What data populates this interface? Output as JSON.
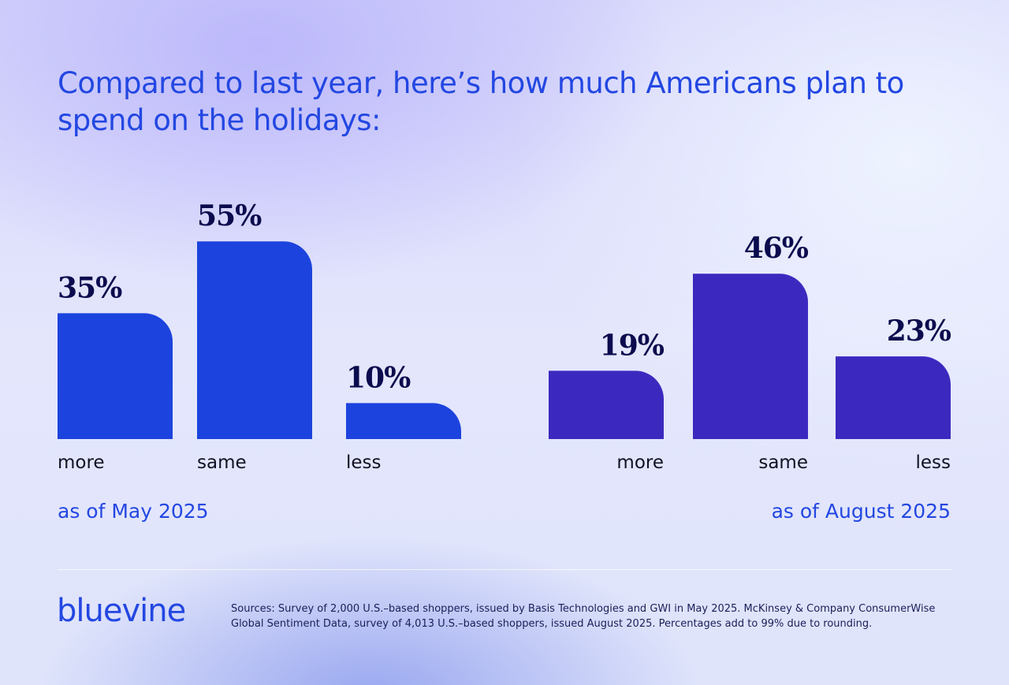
{
  "chart_data": [
    {
      "type": "bar",
      "title": "Compared to last year, here’s how much Americans plan to spend on the holidays:",
      "subtitle": "as of May 2025",
      "categories": [
        "more",
        "same",
        "less"
      ],
      "values": [
        35,
        55,
        10
      ],
      "value_labels": [
        "35%",
        "55%",
        "10%"
      ],
      "unit": "%",
      "color": "#1c43dd",
      "grid": false
    },
    {
      "type": "bar",
      "subtitle": "as of August 2025",
      "categories": [
        "more",
        "same",
        "less"
      ],
      "values": [
        19,
        46,
        23
      ],
      "value_labels": [
        "19%",
        "46%",
        "23%"
      ],
      "unit": "%",
      "color": "#3b29bf",
      "grid": false
    }
  ],
  "brand": {
    "logo": "bluevine",
    "color": "#2347e2"
  },
  "sources": "Sources: Survey of 2,000 U.S.–based shoppers, issued by Basis Technologies and GWI in May 2025. McKinsey & Company ConsumerWise Global Sentiment Data, survey of 4,013 U.S.–based shoppers, issued August 2025. Percentages add to 99% due to rounding."
}
